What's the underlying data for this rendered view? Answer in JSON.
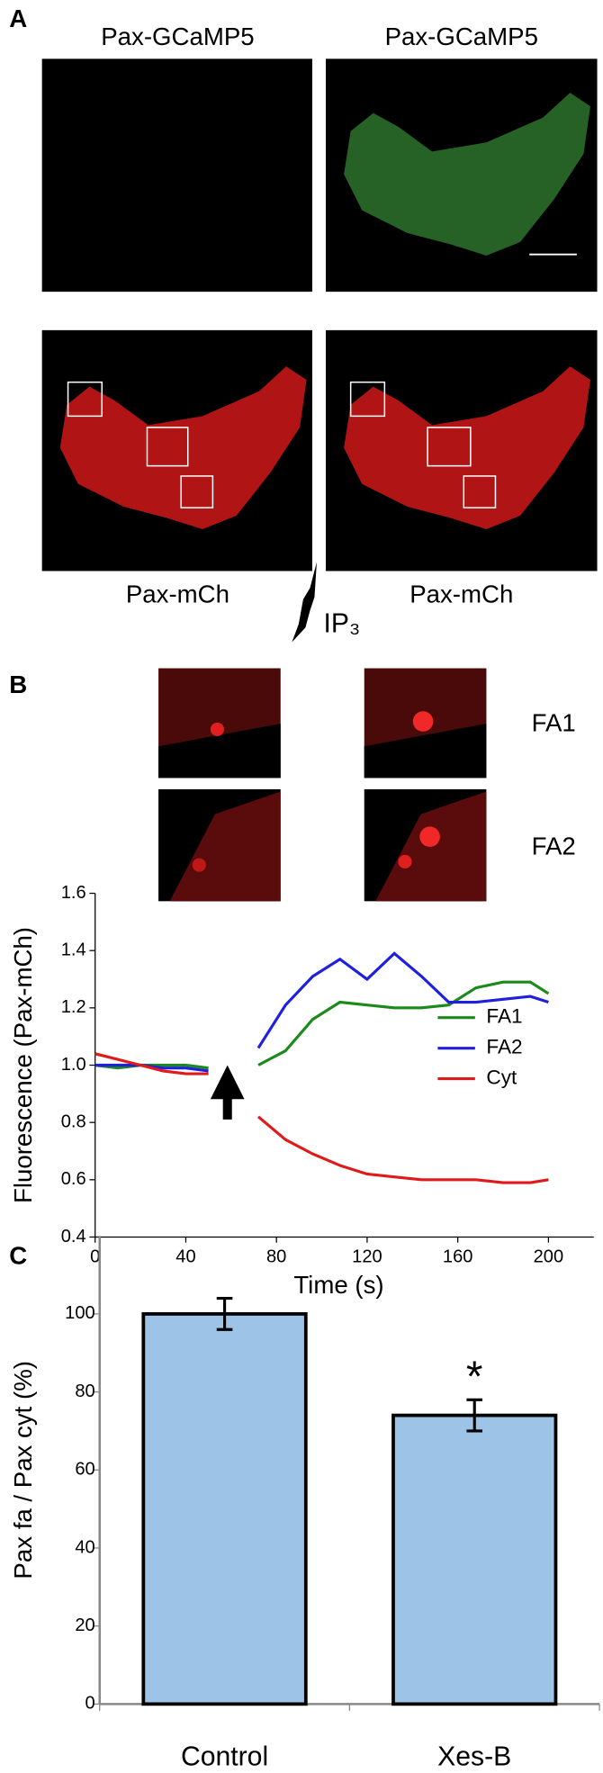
{
  "panel_labels": [
    "A",
    "B",
    "C"
  ],
  "panel_a": {
    "top_labels": [
      "Pax-GCaMP5",
      "Pax-GCaMP5"
    ],
    "bottom_labels": [
      "Pax-mCh",
      "Pax-mCh"
    ],
    "stimulus": "IP₃"
  },
  "panel_b": {
    "inset_labels": [
      "FA1",
      "FA2"
    ]
  },
  "chart_data": [
    {
      "type": "line",
      "xlabel": "Time (s)",
      "ylabel": "Fluorescence (Pax-mCh)",
      "x": [
        0,
        10,
        20,
        30,
        40,
        50,
        61,
        72,
        84,
        96,
        108,
        120,
        132,
        144,
        156,
        168,
        180,
        192,
        200
      ],
      "series": [
        {
          "name": "FA1",
          "color": "#1a8a1a",
          "values": [
            1.0,
            0.99,
            1.0,
            1.0,
            1.0,
            0.99,
            null,
            1.0,
            1.05,
            1.16,
            1.22,
            1.21,
            1.2,
            1.2,
            1.21,
            1.27,
            1.29,
            1.29,
            1.25
          ]
        },
        {
          "name": "FA2",
          "color": "#1f1fe0",
          "values": [
            1.0,
            1.0,
            1.0,
            0.99,
            0.99,
            0.98,
            null,
            1.06,
            1.21,
            1.31,
            1.37,
            1.3,
            1.39,
            1.31,
            1.22,
            1.22,
            1.23,
            1.24,
            1.22
          ]
        },
        {
          "name": "Cyt",
          "color": "#e01a1a",
          "values": [
            1.04,
            1.02,
            1.0,
            0.98,
            0.97,
            0.97,
            null,
            0.82,
            0.74,
            0.69,
            0.65,
            0.62,
            0.61,
            0.6,
            0.6,
            0.6,
            0.59,
            0.59,
            0.6
          ]
        }
      ],
      "xlim": [
        0,
        220
      ],
      "xticks": [
        0,
        40,
        80,
        120,
        160,
        200
      ],
      "ylim": [
        0.4,
        1.6
      ],
      "yticks": [
        0.4,
        0.6,
        0.8,
        {
          "value": 1,
          "label": "1.0"
        },
        1.2,
        1.4,
        1.6
      ],
      "legend": "center right"
    },
    {
      "type": "bar",
      "ylabel": "Pax fa / Pax cyt (%)",
      "categories": [
        "Control",
        "Xes-B"
      ],
      "values": [
        100,
        74
      ],
      "errors": [
        4,
        4
      ],
      "significance_marks": [
        null,
        "*"
      ],
      "color": "#9dc3e6",
      "ylim": [
        0,
        120
      ],
      "yticks": [
        0,
        20,
        40,
        60,
        80,
        100
      ]
    }
  ]
}
